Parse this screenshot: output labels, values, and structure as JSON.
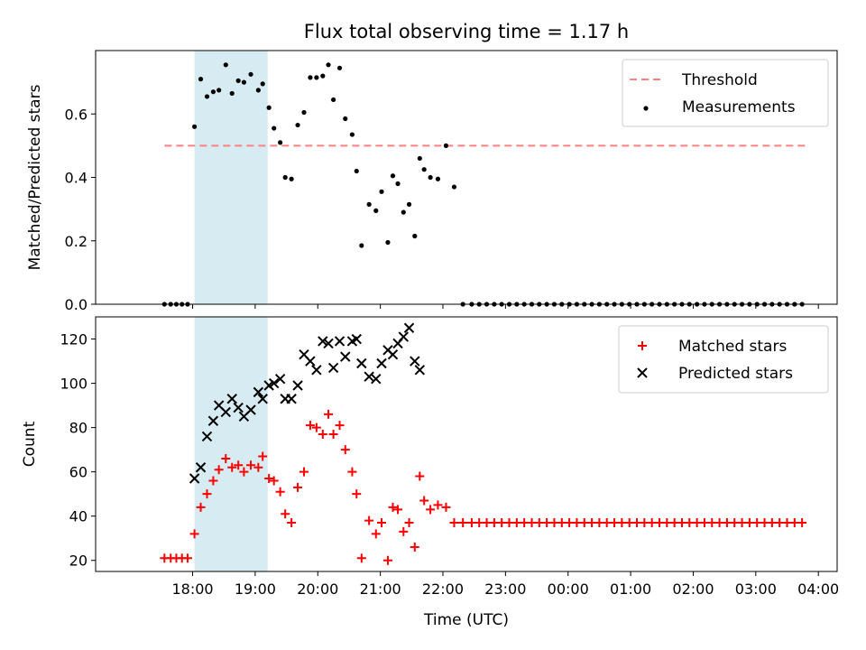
{
  "chart_data": {
    "title": "Flux total observing time = 1.17 h",
    "xlabel": "Time (UTC)",
    "x_units": "hours after 00:00 UTC of the first night (values above 24 fall on the following day)",
    "xlim": [
      16.45,
      28.3
    ],
    "xticks": [
      {
        "value": 18,
        "label": "18:00"
      },
      {
        "value": 19,
        "label": "19:00"
      },
      {
        "value": 20,
        "label": "20:00"
      },
      {
        "value": 21,
        "label": "21:00"
      },
      {
        "value": 22,
        "label": "22:00"
      },
      {
        "value": 23,
        "label": "23:00"
      },
      {
        "value": 24,
        "label": "00:00"
      },
      {
        "value": 25,
        "label": "01:00"
      },
      {
        "value": 26,
        "label": "02:00"
      },
      {
        "value": 27,
        "label": "03:00"
      },
      {
        "value": 28,
        "label": "04:00"
      }
    ],
    "shaded_interval": {
      "x_start": 18.03,
      "x_end": 19.2,
      "color": "#add8e6"
    },
    "panels": [
      {
        "type": "scatter",
        "ylabel": "Matched/Predicted stars",
        "ylim": [
          0,
          0.8
        ],
        "yticks": [
          0.0,
          0.2,
          0.4,
          0.6
        ],
        "ytick_labels": [
          "0.0",
          "0.2",
          "0.4",
          "0.6"
        ],
        "legend_position": "top-right",
        "threshold": {
          "name": "Threshold",
          "y": 0.5,
          "x_start": 17.55,
          "x_end": 27.8,
          "color": "#ff8080"
        },
        "series": [
          {
            "name": "Measurements",
            "color": "#000000",
            "marker": "dot",
            "x": [
              17.55,
              17.65,
              17.74,
              17.83,
              17.92,
              18.03,
              18.13,
              18.23,
              18.33,
              18.42,
              18.53,
              18.63,
              18.73,
              18.82,
              18.93,
              19.05,
              19.12,
              19.22,
              19.3,
              19.4,
              19.48,
              19.58,
              19.68,
              19.78,
              19.88,
              19.98,
              20.08,
              20.17,
              20.25,
              20.35,
              20.44,
              20.55,
              20.62,
              20.7,
              20.82,
              20.93,
              21.02,
              21.12,
              21.2,
              21.28,
              21.37,
              21.46,
              21.55,
              21.63,
              21.7,
              21.8,
              21.92,
              22.05,
              22.18,
              22.32,
              22.46,
              22.58,
              22.7,
              22.82,
              22.94,
              23.06,
              23.18,
              23.3,
              23.42,
              23.54,
              23.66,
              23.78,
              23.9,
              24.02,
              24.14,
              24.26,
              24.38,
              24.5,
              24.62,
              24.74,
              24.86,
              24.98,
              25.1,
              25.22,
              25.34,
              25.46,
              25.58,
              25.7,
              25.82,
              25.94,
              26.06,
              26.18,
              26.3,
              26.42,
              26.54,
              26.66,
              26.78,
              26.9,
              27.02,
              27.14,
              27.26,
              27.38,
              27.5,
              27.62,
              27.74
            ],
            "y": [
              0.0,
              0.0,
              0.0,
              0.0,
              0.0,
              0.56,
              0.71,
              0.655,
              0.67,
              0.675,
              0.755,
              0.665,
              0.705,
              0.7,
              0.725,
              0.675,
              0.695,
              0.62,
              0.555,
              0.51,
              0.4,
              0.395,
              0.565,
              0.605,
              0.715,
              0.715,
              0.72,
              0.755,
              0.645,
              0.745,
              0.585,
              0.535,
              0.42,
              0.185,
              0.315,
              0.295,
              0.355,
              0.195,
              0.405,
              0.38,
              0.29,
              0.315,
              0.215,
              0.46,
              0.425,
              0.4,
              0.395,
              0.5,
              0.37,
              0.0,
              0.0,
              0.0,
              0.0,
              0.0,
              0.0,
              0.0,
              0.0,
              0.0,
              0.0,
              0.0,
              0.0,
              0.0,
              0.0,
              0.0,
              0.0,
              0.0,
              0.0,
              0.0,
              0.0,
              0.0,
              0.0,
              0.0,
              0.0,
              0.0,
              0.0,
              0.0,
              0.0,
              0.0,
              0.0,
              0.0,
              0.0,
              0.0,
              0.0,
              0.0,
              0.0,
              0.0,
              0.0,
              0.0,
              0.0,
              0.0,
              0.0,
              0.0,
              0.0,
              0.0,
              0.0
            ]
          }
        ]
      },
      {
        "type": "scatter",
        "ylabel": "Count",
        "ylim": [
          15,
          130
        ],
        "yticks": [
          20,
          40,
          60,
          80,
          100,
          120
        ],
        "ytick_labels": [
          "20",
          "40",
          "60",
          "80",
          "100",
          "120"
        ],
        "legend_position": "top-right",
        "series": [
          {
            "name": "Matched stars",
            "color": "#ff0000",
            "marker": "plus",
            "x": [
              17.55,
              17.65,
              17.74,
              17.83,
              17.92,
              18.03,
              18.13,
              18.23,
              18.33,
              18.42,
              18.53,
              18.63,
              18.73,
              18.82,
              18.93,
              19.05,
              19.12,
              19.22,
              19.3,
              19.4,
              19.48,
              19.58,
              19.68,
              19.78,
              19.88,
              19.98,
              20.08,
              20.17,
              20.25,
              20.35,
              20.44,
              20.55,
              20.62,
              20.7,
              20.82,
              20.93,
              21.02,
              21.12,
              21.2,
              21.28,
              21.37,
              21.46,
              21.55,
              21.63,
              21.7,
              21.8,
              21.92,
              22.05,
              22.18,
              22.32,
              22.46,
              22.58,
              22.7,
              22.82,
              22.94,
              23.06,
              23.18,
              23.3,
              23.42,
              23.54,
              23.66,
              23.78,
              23.9,
              24.02,
              24.14,
              24.26,
              24.38,
              24.5,
              24.62,
              24.74,
              24.86,
              24.98,
              25.1,
              25.22,
              25.34,
              25.46,
              25.58,
              25.7,
              25.82,
              25.94,
              26.06,
              26.18,
              26.3,
              26.42,
              26.54,
              26.66,
              26.78,
              26.9,
              27.02,
              27.14,
              27.26,
              27.38,
              27.5,
              27.62,
              27.74
            ],
            "y": [
              21,
              21,
              21,
              21,
              21,
              32,
              44,
              50,
              56,
              61,
              66,
              62,
              63,
              60,
              63,
              62,
              67,
              57,
              56,
              51,
              41,
              37,
              53,
              60,
              81,
              80,
              77,
              86,
              77,
              81,
              70,
              60,
              50,
              21,
              38,
              32,
              37,
              20,
              44,
              43,
              33,
              37,
              26,
              58,
              47,
              43,
              45,
              44,
              37,
              37,
              37,
              37,
              37,
              37,
              37,
              37,
              37,
              37,
              37,
              37,
              37,
              37,
              37,
              37,
              37,
              37,
              37,
              37,
              37,
              37,
              37,
              37,
              37,
              37,
              37,
              37,
              37,
              37,
              37,
              37,
              37,
              37,
              37,
              37,
              37,
              37,
              37,
              37,
              37,
              37,
              37,
              37,
              37,
              37,
              37
            ]
          },
          {
            "name": "Predicted stars",
            "color": "#000000",
            "marker": "cross",
            "x": [
              18.03,
              18.13,
              18.23,
              18.33,
              18.42,
              18.53,
              18.63,
              18.73,
              18.82,
              18.93,
              19.05,
              19.12,
              19.22,
              19.3,
              19.4,
              19.48,
              19.58,
              19.68,
              19.78,
              19.88,
              19.98,
              20.08,
              20.17,
              20.25,
              20.35,
              20.44,
              20.55,
              20.62,
              20.7,
              20.82,
              20.93,
              21.02,
              21.12,
              21.2,
              21.28,
              21.37,
              21.46,
              21.55,
              21.63
            ],
            "y": [
              57,
              62,
              76,
              83,
              90,
              87,
              93,
              89,
              85,
              88,
              96,
              93,
              99,
              100,
              102,
              93,
              93,
              99,
              113,
              110,
              106,
              119,
              118,
              107,
              119,
              112,
              119,
              120,
              109,
              103,
              102,
              109,
              115,
              113,
              118,
              121,
              125,
              110,
              106
            ]
          }
        ]
      }
    ]
  }
}
